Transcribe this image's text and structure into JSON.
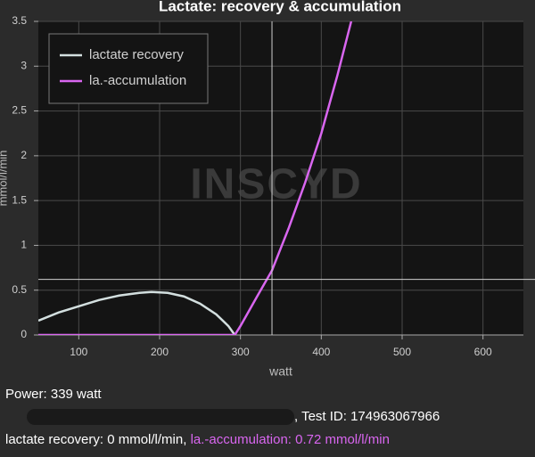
{
  "chart_data": {
    "type": "line",
    "title": "Lactate: recovery & accumulation",
    "xlabel": "watt",
    "ylabel": "mmol/l/min",
    "watermark": "INSCYD",
    "xlim": [
      50,
      650
    ],
    "xticks": [
      100,
      200,
      300,
      400,
      500,
      600
    ],
    "ylim": [
      0,
      3.5
    ],
    "yticks": [
      0,
      0.5,
      1,
      1.5,
      2,
      2.5,
      3,
      3.5
    ],
    "grid": true,
    "legend": "upper left",
    "cursor": {
      "x": 339,
      "y": 0.62
    },
    "series": [
      {
        "name": "lactate recovery",
        "color": "#d3dfdf",
        "x": [
          50,
          75,
          100,
          125,
          150,
          175,
          190,
          210,
          230,
          250,
          270,
          285,
          293
        ],
        "values": [
          0.16,
          0.25,
          0.32,
          0.39,
          0.44,
          0.47,
          0.48,
          0.47,
          0.43,
          0.35,
          0.23,
          0.1,
          0
        ]
      },
      {
        "name": "la.-accumulation",
        "color": "#d966f0",
        "x": [
          50,
          293,
          300,
          320,
          339,
          360,
          380,
          400,
          420,
          437
        ],
        "values": [
          0,
          0,
          0.1,
          0.42,
          0.72,
          1.2,
          1.7,
          2.25,
          2.9,
          3.5
        ]
      }
    ]
  },
  "info": {
    "power": "Power: 339 watt",
    "test_id": ", Test ID: 174963067966",
    "recovery": "lactate recovery: 0 mmol/l/min, ",
    "accumulation": "la.-accumulation: 0.72 mmol/l/min"
  }
}
